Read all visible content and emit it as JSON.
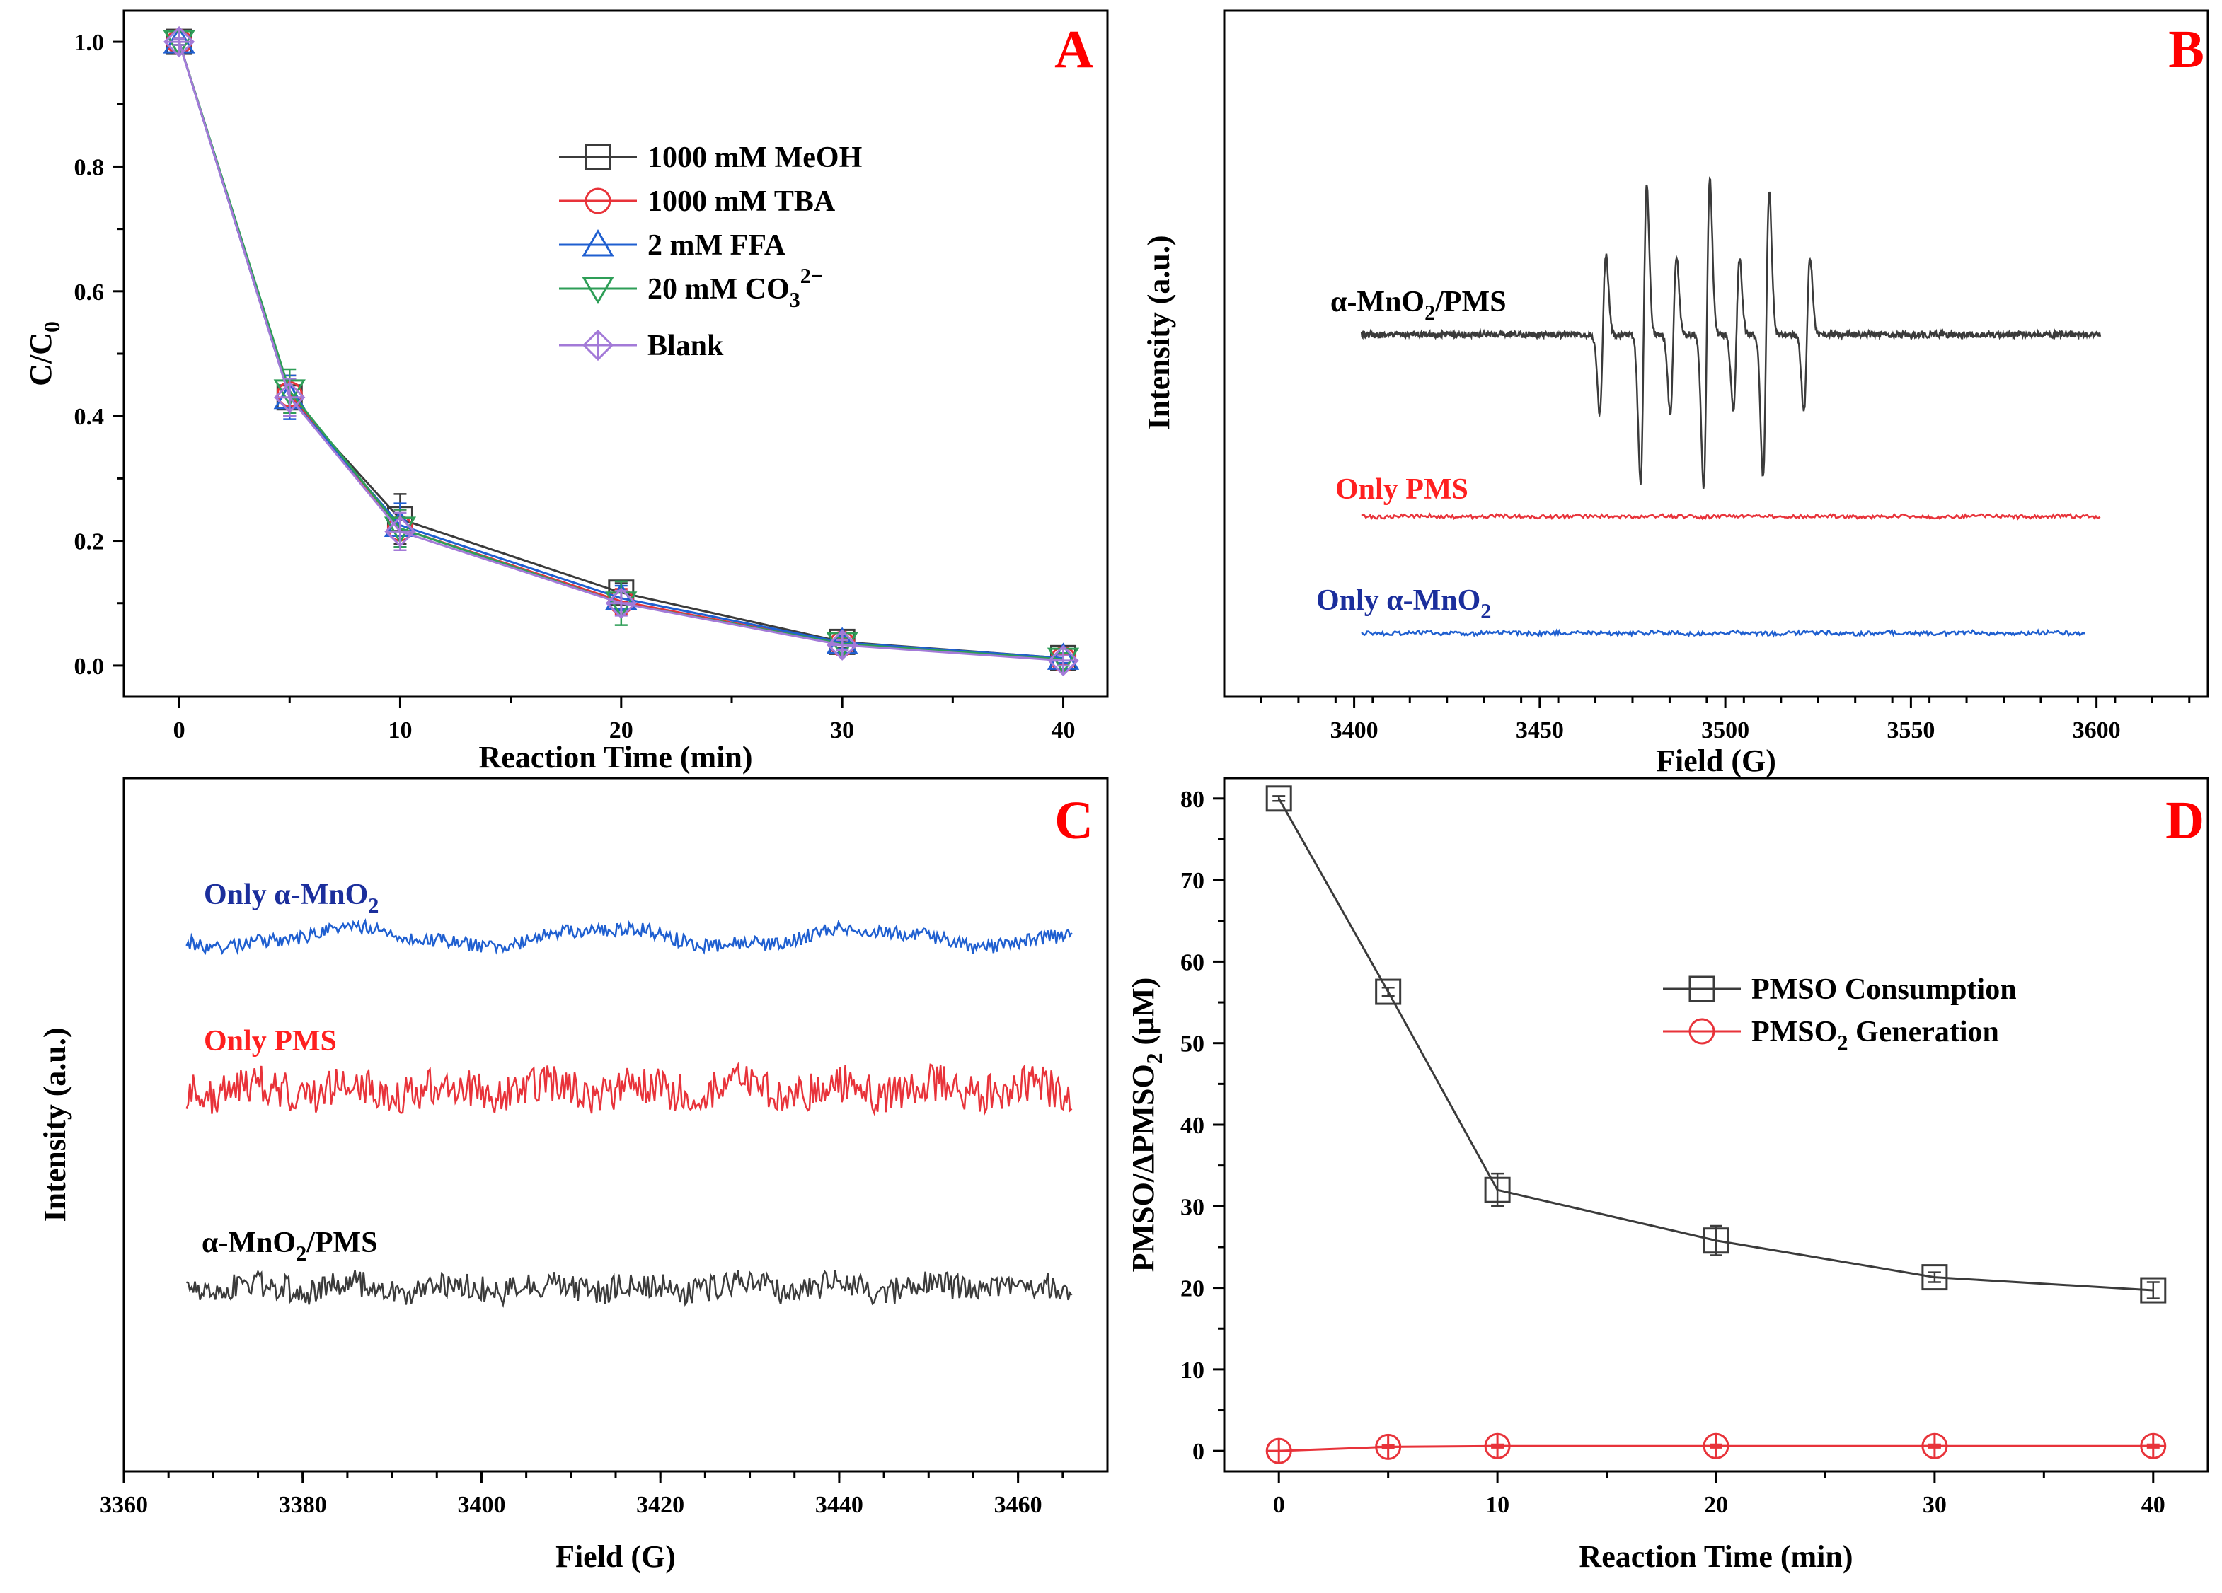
{
  "colors": {
    "black": "#3b3b3b",
    "red": "#e8333a",
    "blue": "#1f5fd0",
    "green": "#2e9e57",
    "purple": "#a37ad8",
    "darkblue": "#1b2e9c",
    "labelred": "#ff2020",
    "letter": "#ff0000"
  },
  "chart_data": [
    {
      "panel": "A",
      "type": "line",
      "title": "A",
      "xlabel": "Reaction Time (min)",
      "ylabel": "C/C0",
      "xlim": [
        -2.5,
        42
      ],
      "ylim": [
        -0.05,
        1.05
      ],
      "xticks": [
        "0",
        "10",
        "20",
        "30",
        "40"
      ],
      "yticks": [
        "0.0",
        "0.2",
        "0.4",
        "0.6",
        "0.8",
        "1.0"
      ],
      "x": [
        0,
        5,
        10,
        20,
        30,
        40
      ],
      "series": [
        {
          "name": "1000 mM MeOH",
          "marker": "square",
          "color": "black",
          "values": [
            1.0,
            0.43,
            0.235,
            0.117,
            0.038,
            0.012
          ],
          "err": [
            0.005,
            0.03,
            0.04,
            0.015,
            0.01,
            0.008
          ]
        },
        {
          "name": "1000 mM TBA",
          "marker": "circle",
          "color": "red",
          "values": [
            1.0,
            0.435,
            0.22,
            0.103,
            0.035,
            0.01
          ],
          "err": [
            0.005,
            0.03,
            0.03,
            0.02,
            0.008,
            0.008
          ]
        },
        {
          "name": "2 mM FFA",
          "marker": "triangle-up",
          "color": "blue",
          "values": [
            1.0,
            0.43,
            0.225,
            0.108,
            0.037,
            0.012
          ],
          "err": [
            0.005,
            0.035,
            0.035,
            0.02,
            0.01,
            0.008
          ]
        },
        {
          "name": "20 mM CO3 2−",
          "marker": "triangle-down",
          "color": "green",
          "values": [
            1.0,
            0.44,
            0.22,
            0.1,
            0.035,
            0.01
          ],
          "err": [
            0.005,
            0.035,
            0.03,
            0.035,
            0.01,
            0.01
          ]
        },
        {
          "name": "Blank",
          "marker": "diamond-plus",
          "color": "purple",
          "values": [
            1.0,
            0.43,
            0.215,
            0.1,
            0.033,
            0.008
          ],
          "err": [
            0.005,
            0.03,
            0.03,
            0.02,
            0.008,
            0.008
          ]
        }
      ],
      "legend": {
        "items": [
          {
            "main": "1000 mM MeOH"
          },
          {
            "main": "1000 mM TBA"
          },
          {
            "main": "2 mM FFA"
          },
          {
            "main": "20 mM CO",
            "sub": "3",
            "sup": "2−"
          },
          {
            "main": "Blank"
          }
        ]
      }
    },
    {
      "panel": "B",
      "type": "line",
      "title": "B",
      "xlabel": "Field (G)",
      "ylabel": "Intensity (a.u.)",
      "xlim": [
        3365,
        3630
      ],
      "xticks": [
        "3400",
        "3450",
        "3500",
        "3550",
        "3600"
      ],
      "series": [
        {
          "name": "α-MnO2/PMS",
          "color": "black",
          "baseline_label": "α-MnO2/PMS",
          "x_range": [
            3402,
            3601
          ],
          "peaks": [
            3467,
            3478,
            3486,
            3495,
            3503,
            3511,
            3522
          ],
          "peak_heights": [
            0.45,
            0.85,
            0.45,
            0.88,
            0.43,
            0.82,
            0.44
          ]
        },
        {
          "name": "Only PMS",
          "color": "red",
          "x_range": [
            3402,
            3601
          ]
        },
        {
          "name": "Only α-MnO2",
          "color": "blue",
          "x_range": [
            3402,
            3597
          ]
        }
      ],
      "labels": [
        {
          "main": "α-MnO",
          "sub": "2",
          "tail": "/PMS"
        },
        {
          "main": "Only PMS"
        },
        {
          "main": "Only α-MnO",
          "sub": "2"
        }
      ]
    },
    {
      "panel": "C",
      "type": "line",
      "title": "C",
      "xlabel": "Field (G)",
      "ylabel": "Intensity (a.u.)",
      "xlim": [
        3360,
        3470
      ],
      "xticks": [
        "3360",
        "3380",
        "3400",
        "3420",
        "3440",
        "3460"
      ],
      "series": [
        {
          "name": "Only α-MnO2",
          "color": "blue",
          "x_range": [
            3367,
            3466
          ]
        },
        {
          "name": "Only PMS",
          "color": "red",
          "x_range": [
            3367,
            3466
          ]
        },
        {
          "name": "α-MnO2/PMS",
          "color": "black",
          "x_range": [
            3367,
            3466
          ]
        }
      ],
      "labels": [
        {
          "main": "Only α-MnO",
          "sub": "2"
        },
        {
          "main": "Only PMS"
        },
        {
          "main": "α-MnO",
          "sub": "2",
          "tail": "/PMS"
        }
      ]
    },
    {
      "panel": "D",
      "type": "line",
      "title": "D",
      "xlabel": "Reaction Time (min)",
      "ylabel": "PMSO/ΔPMSO2 (μM)",
      "xlim": [
        -2.5,
        42.5
      ],
      "ylim": [
        -2.5,
        82.5
      ],
      "xticks": [
        "0",
        "10",
        "20",
        "30",
        "40"
      ],
      "yticks": [
        "0",
        "10",
        "20",
        "30",
        "40",
        "50",
        "60",
        "70",
        "80"
      ],
      "x": [
        0,
        5,
        10,
        20,
        30,
        40
      ],
      "series": [
        {
          "name": "PMSO Consumption",
          "marker": "square",
          "color": "black",
          "values": [
            80,
            56.3,
            32,
            25.8,
            21.3,
            19.7
          ],
          "err": [
            0.3,
            0.5,
            2.0,
            1.8,
            0.6,
            1.0
          ]
        },
        {
          "name": "PMSO2 Generation",
          "marker": "circle-plus",
          "color": "red",
          "values": [
            0,
            0.5,
            0.6,
            0.6,
            0.6,
            0.6
          ],
          "err": [
            0,
            0.2,
            0.2,
            0.2,
            0.2,
            0.2
          ]
        }
      ],
      "legend": {
        "items": [
          {
            "main": "PMSO Consumption"
          },
          {
            "main": "PMSO",
            "sub": "2",
            "tail": " Generation"
          }
        ]
      }
    }
  ],
  "axis_title_parts": {
    "A_ylabel": {
      "main": "C/C",
      "sub": "0"
    },
    "D_ylabel": {
      "main": "PMSO/ΔPMSO",
      "sub": "2",
      "tail": " (μM)"
    }
  }
}
